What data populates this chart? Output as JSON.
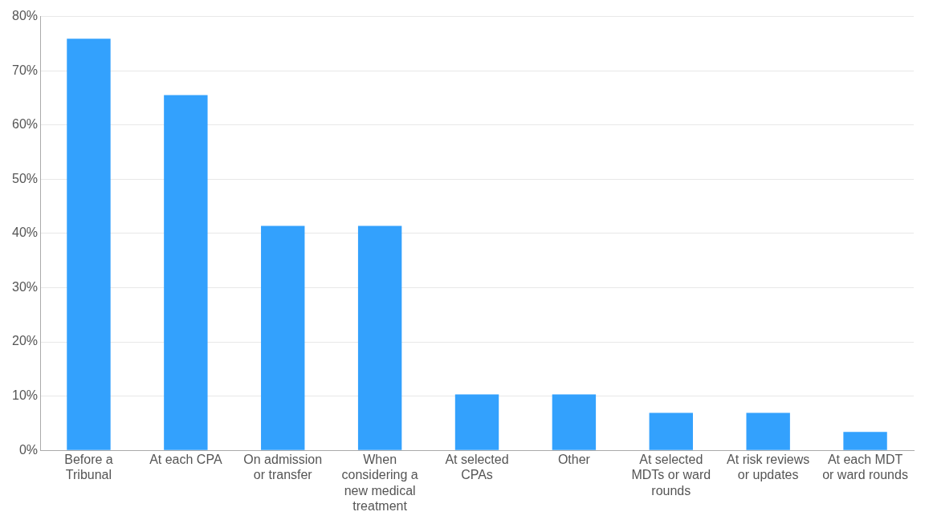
{
  "chart_data": {
    "type": "bar",
    "categories": [
      "Before a Tribunal",
      "At each CPA",
      "On admission or transfer",
      "When considering a new medical treatment",
      "At selected CPAs",
      "Other",
      "At selected MDTs or ward rounds",
      "At risk reviews or updates",
      "At each MDT or ward rounds"
    ],
    "values": [
      75.9,
      65.5,
      41.4,
      41.4,
      10.3,
      10.3,
      6.9,
      6.9,
      3.4
    ],
    "color": "#33a1fd",
    "ylim": [
      0,
      80
    ],
    "yticks": [
      {
        "value": 0,
        "label": "0%"
      },
      {
        "value": 10,
        "label": "10%"
      },
      {
        "value": 20,
        "label": "20%"
      },
      {
        "value": 30,
        "label": "30%"
      },
      {
        "value": 40,
        "label": "40%"
      },
      {
        "value": 50,
        "label": "50%"
      },
      {
        "value": 60,
        "label": "60%"
      },
      {
        "value": 70,
        "label": "70%"
      },
      {
        "value": 80,
        "label": "80%"
      }
    ],
    "grid": "y",
    "legend": false
  }
}
